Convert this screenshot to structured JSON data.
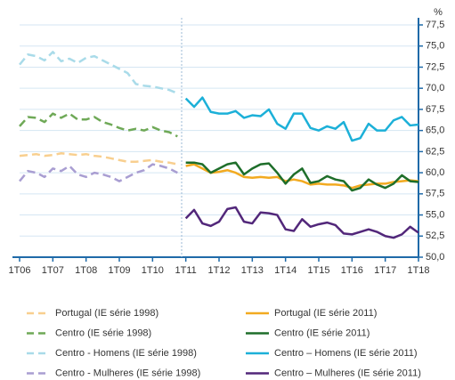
{
  "chart_data": {
    "type": "line",
    "y_unit": "%",
    "categories": [
      "1T06",
      null,
      null,
      null,
      "1T07",
      null,
      null,
      null,
      "1T08",
      null,
      null,
      null,
      "1T09",
      null,
      null,
      null,
      "1T10",
      null,
      null,
      null,
      "1T11",
      null,
      null,
      null,
      "1T12",
      null,
      null,
      null,
      "1T13",
      null,
      null,
      null,
      "1T14",
      null,
      null,
      null,
      "1T15",
      null,
      null,
      null,
      "1T16",
      null,
      null,
      null,
      "1T17",
      null,
      null,
      null,
      "1T18"
    ],
    "ylim": [
      50,
      77.5
    ],
    "yticks": [
      {
        "value": 50,
        "label": "50,0"
      },
      {
        "value": 52.5,
        "label": "52,5"
      },
      {
        "value": 55,
        "label": "55,0"
      },
      {
        "value": 57.5,
        "label": "57,5"
      },
      {
        "value": 60,
        "label": "60,0"
      },
      {
        "value": 62.5,
        "label": "62,5"
      },
      {
        "value": 65,
        "label": "65,0"
      },
      {
        "value": 67.5,
        "label": "67,5"
      },
      {
        "value": 70,
        "label": "70,0"
      },
      {
        "value": 72.5,
        "label": "72,5"
      },
      {
        "value": 75,
        "label": "75,0"
      },
      {
        "value": 77.5,
        "label": "77,5"
      }
    ],
    "grid": true,
    "series": [
      {
        "name": "Portugal (IE série 1998)",
        "color": "#f8cf8f",
        "dashed": true,
        "values": [
          62.0,
          62.1,
          62.2,
          62.0,
          62.1,
          62.3,
          62.2,
          62.1,
          62.2,
          62.0,
          61.9,
          61.7,
          61.5,
          61.3,
          61.3,
          61.4,
          61.5,
          61.3,
          61.2,
          61.0,
          null,
          null,
          null,
          null,
          null,
          null,
          null,
          null,
          null,
          null,
          null,
          null,
          null,
          null,
          null,
          null,
          null,
          null,
          null,
          null,
          null,
          null,
          null,
          null,
          null,
          null,
          null,
          null,
          null
        ]
      },
      {
        "name": "Centro (IE série 1998)",
        "color": "#6fa957",
        "dashed": true,
        "values": [
          65.5,
          66.6,
          66.5,
          66.0,
          67.0,
          66.5,
          67.0,
          66.3,
          66.3,
          66.6,
          66.0,
          65.7,
          65.3,
          65.0,
          65.2,
          65.0,
          65.4,
          65.0,
          64.8,
          64.3,
          null,
          null,
          null,
          null,
          null,
          null,
          null,
          null,
          null,
          null,
          null,
          null,
          null,
          null,
          null,
          null,
          null,
          null,
          null,
          null,
          null,
          null,
          null,
          null,
          null,
          null,
          null,
          null,
          null
        ]
      },
      {
        "name": "Centro - Homens (IE série 1998)",
        "color": "#a9dbe9",
        "dashed": true,
        "values": [
          72.8,
          74.0,
          73.8,
          73.3,
          74.3,
          73.2,
          73.5,
          73.0,
          73.6,
          73.8,
          73.3,
          72.8,
          72.3,
          71.8,
          70.5,
          70.3,
          70.2,
          70.0,
          69.8,
          69.4,
          null,
          null,
          null,
          null,
          null,
          null,
          null,
          null,
          null,
          null,
          null,
          null,
          null,
          null,
          null,
          null,
          null,
          null,
          null,
          null,
          null,
          null,
          null,
          null,
          null,
          null,
          null,
          null,
          null
        ]
      },
      {
        "name": "Centro - Mulheres (IE série 1998)",
        "color": "#a99ed2",
        "dashed": true,
        "values": [
          59.0,
          60.2,
          60.0,
          59.5,
          60.5,
          60.2,
          60.8,
          59.8,
          59.5,
          60.0,
          59.8,
          59.5,
          59.0,
          59.5,
          60.0,
          60.3,
          61.0,
          60.8,
          60.5,
          60.0,
          null,
          null,
          null,
          null,
          null,
          null,
          null,
          null,
          null,
          null,
          null,
          null,
          null,
          null,
          null,
          null,
          null,
          null,
          null,
          null,
          null,
          null,
          null,
          null,
          null,
          null,
          null,
          null,
          null
        ]
      },
      {
        "name": "Portugal (IE série 2011)",
        "color": "#f2aa20",
        "dashed": false,
        "values": [
          null,
          null,
          null,
          null,
          null,
          null,
          null,
          null,
          null,
          null,
          null,
          null,
          null,
          null,
          null,
          null,
          null,
          null,
          null,
          null,
          60.8,
          61.0,
          60.5,
          60.0,
          60.1,
          60.3,
          60.0,
          59.5,
          59.4,
          59.5,
          59.4,
          59.5,
          59.0,
          59.2,
          59.0,
          58.6,
          58.7,
          58.6,
          58.6,
          58.5,
          58.2,
          58.5,
          58.6,
          58.7,
          58.7,
          58.9,
          59.0,
          59.1,
          59.0
        ]
      },
      {
        "name": "Centro (IE série 2011)",
        "color": "#1e6e2a",
        "dashed": false,
        "values": [
          null,
          null,
          null,
          null,
          null,
          null,
          null,
          null,
          null,
          null,
          null,
          null,
          null,
          null,
          null,
          null,
          null,
          null,
          null,
          null,
          61.2,
          61.2,
          61.0,
          60.0,
          60.5,
          61.0,
          61.2,
          59.8,
          60.5,
          61.0,
          61.1,
          60.0,
          58.7,
          59.8,
          60.5,
          58.8,
          59.0,
          59.6,
          59.2,
          59.0,
          57.9,
          58.2,
          59.2,
          58.6,
          58.2,
          58.7,
          59.7,
          59.0,
          58.9
        ]
      },
      {
        "name": "Centro – Homens (IE série 2011)",
        "color": "#1cb0d8",
        "dashed": false,
        "values": [
          null,
          null,
          null,
          null,
          null,
          null,
          null,
          null,
          null,
          null,
          null,
          null,
          null,
          null,
          null,
          null,
          null,
          null,
          null,
          null,
          68.8,
          67.8,
          68.9,
          67.2,
          67.0,
          67.0,
          67.3,
          66.5,
          66.8,
          66.7,
          67.5,
          65.8,
          65.2,
          67.0,
          67.0,
          65.3,
          65.0,
          65.5,
          65.2,
          66.0,
          63.8,
          64.1,
          65.8,
          65.0,
          65.0,
          66.2,
          66.6,
          65.6,
          65.7
        ]
      },
      {
        "name": "Centro – Mulheres (IE série 2011)",
        "color": "#52277a",
        "dashed": false,
        "values": [
          null,
          null,
          null,
          null,
          null,
          null,
          null,
          null,
          null,
          null,
          null,
          null,
          null,
          null,
          null,
          null,
          null,
          null,
          null,
          null,
          54.6,
          55.6,
          54.0,
          53.7,
          54.2,
          55.7,
          55.9,
          54.2,
          54.0,
          55.3,
          55.2,
          55.0,
          53.3,
          53.1,
          54.5,
          53.6,
          53.9,
          54.1,
          53.8,
          52.8,
          52.7,
          53.0,
          53.3,
          53.0,
          52.5,
          52.3,
          52.7,
          53.6,
          52.9
        ]
      }
    ]
  }
}
